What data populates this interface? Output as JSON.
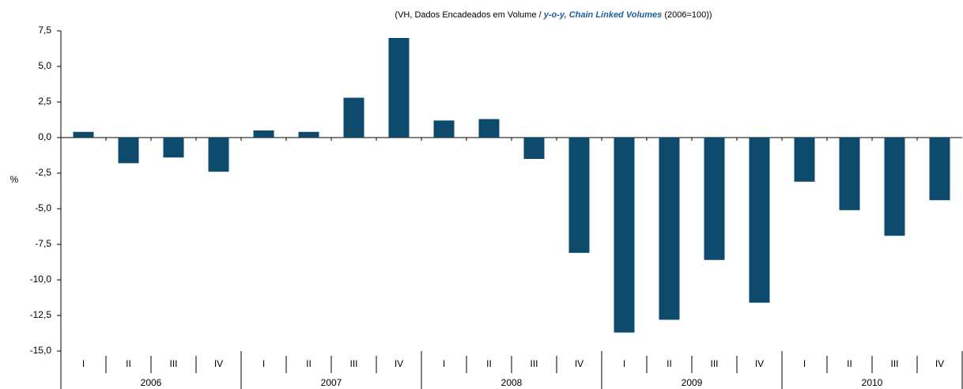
{
  "chart_data": {
    "type": "bar",
    "subtitle": [
      "(VH, Dados Encadeados em Volume / ",
      "y-o-y, Chain Linked Volumes",
      " (2006=100))"
    ],
    "y_label": "%",
    "categories": [
      "I",
      "II",
      "III",
      "IV",
      "I",
      "II",
      "III",
      "IV",
      "I",
      "II",
      "III",
      "IV",
      "I",
      "II",
      "III",
      "IV",
      "I",
      "II",
      "III",
      "IV"
    ],
    "groups": [
      "2006",
      "2007",
      "2008",
      "2009",
      "2010"
    ],
    "values": [
      0.4,
      -1.8,
      -1.4,
      -2.4,
      0.5,
      0.4,
      2.8,
      7.0,
      1.2,
      1.3,
      -1.5,
      -8.1,
      -13.7,
      -12.8,
      -8.6,
      -11.6,
      -3.1,
      -5.1,
      -6.9,
      -4.4
    ],
    "color": "#0d4a6b",
    "ylim": [
      -15,
      7.5
    ],
    "yticks": [
      {
        "value": 7.5,
        "label": "7,5"
      },
      {
        "value": 5,
        "label": "5,0"
      },
      {
        "value": 2.5,
        "label": "2,5"
      },
      {
        "value": 0,
        "label": "0,0"
      },
      {
        "value": -2.5,
        "label": "-2,5"
      },
      {
        "value": -5,
        "label": "-5,0"
      },
      {
        "value": -7.5,
        "label": "-7,5"
      },
      {
        "value": -10,
        "label": "-10,0"
      },
      {
        "value": -12.5,
        "label": "-12,5"
      },
      {
        "value": -15,
        "label": "-15,0"
      }
    ]
  }
}
